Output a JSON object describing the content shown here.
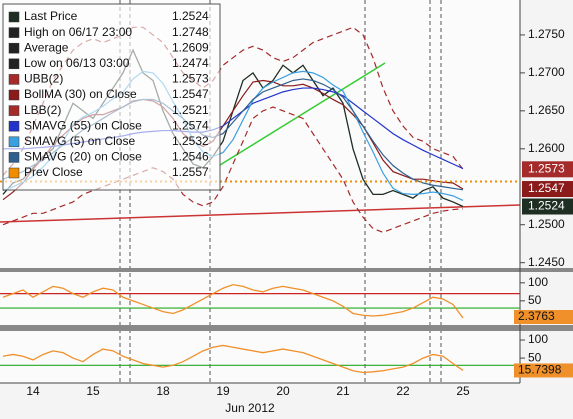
{
  "chart_data": {
    "type": "line",
    "date_label": "Jun 2012",
    "categories": [
      null,
      null,
      null,
      "14",
      null,
      null,
      null,
      null,
      null,
      "15",
      null,
      null,
      null,
      null,
      null,
      null,
      "18",
      null,
      null,
      null,
      null,
      null,
      "19",
      null,
      null,
      null,
      null,
      null,
      "20",
      null,
      null,
      null,
      null,
      null,
      "21",
      null,
      null,
      null,
      null,
      null,
      "22",
      null,
      null,
      null,
      null,
      null,
      "25"
    ],
    "ylim": [
      1.2443,
      1.2796
    ],
    "yticks": [
      {
        "value": 1.245,
        "label": "1.2450"
      },
      {
        "value": 1.25,
        "label": "1.2500"
      },
      {
        "value": 1.26,
        "label": "1.2600"
      },
      {
        "value": 1.265,
        "label": "1.2650"
      },
      {
        "value": 1.27,
        "label": "1.2700"
      },
      {
        "value": 1.275,
        "label": "1.2750"
      }
    ],
    "series": [
      {
        "name": "Last Price",
        "color": "#1e2e22",
        "value": 1.2524,
        "tag": true,
        "values": [
          1.254,
          1.2555,
          1.256,
          1.2575,
          1.259,
          1.26,
          1.263,
          1.266,
          1.265,
          1.264,
          1.266,
          1.268,
          1.27,
          1.273,
          1.27,
          1.269,
          1.265,
          1.262,
          1.26,
          1.258,
          1.2575,
          1.259,
          1.261,
          1.265,
          1.269,
          1.27,
          1.268,
          1.269,
          1.271,
          1.27,
          1.271,
          1.269,
          1.267,
          1.268,
          1.266,
          1.26,
          1.256,
          1.254,
          1.254,
          1.2545,
          1.254,
          1.2535,
          1.2545,
          1.255,
          1.2535,
          1.253,
          1.2524
        ]
      },
      {
        "name": "High on 06/17 23:00",
        "color": "#222222",
        "value": 1.2748
      },
      {
        "name": "Average",
        "color": "#222222",
        "value": 1.2609
      },
      {
        "name": "Low on 06/13 03:00",
        "color": "#222222",
        "value": 1.2474
      },
      {
        "name": "UBB(2)",
        "color": "#a52a2a",
        "value": 1.2573,
        "dash": true,
        "tag": true,
        "values": [
          1.2565,
          1.258,
          1.26,
          1.263,
          1.266,
          1.269,
          1.271,
          1.273,
          1.274,
          1.2745,
          1.274,
          1.2745,
          1.275,
          1.276,
          1.276,
          1.275,
          1.274,
          1.272,
          1.27,
          1.269,
          1.268,
          1.269,
          1.271,
          1.272,
          1.273,
          1.2735,
          1.273,
          1.272,
          1.2715,
          1.272,
          1.273,
          1.274,
          1.2745,
          1.275,
          1.2755,
          1.276,
          1.275,
          1.272,
          1.268,
          1.265,
          1.263,
          1.2615,
          1.261,
          1.26,
          1.2595,
          1.259,
          1.2573
        ]
      },
      {
        "name": "BollMA (30) on Close",
        "color": "#8b1a1a",
        "value": 1.2547,
        "tag": true,
        "values": [
          1.2533,
          1.2543,
          1.2555,
          1.2573,
          1.2588,
          1.2605,
          1.2618,
          1.263,
          1.264,
          1.2645,
          1.2645,
          1.265,
          1.2655,
          1.2663,
          1.2665,
          1.2663,
          1.2655,
          1.264,
          1.262,
          1.261,
          1.2603,
          1.261,
          1.263,
          1.265,
          1.267,
          1.2688,
          1.269,
          1.2688,
          1.2683,
          1.2683,
          1.2685,
          1.268,
          1.2673,
          1.2665,
          1.2658,
          1.2645,
          1.263,
          1.2608,
          1.2585,
          1.257,
          1.2565,
          1.256,
          1.256,
          1.2558,
          1.2556,
          1.2555,
          1.2547
        ]
      },
      {
        "name": "LBB(2)",
        "color": "#a52a2a",
        "value": 1.2521,
        "dash": true,
        "values": [
          1.25,
          1.2505,
          1.251,
          1.2515,
          1.2515,
          1.252,
          1.2525,
          1.253,
          1.254,
          1.2545,
          1.255,
          1.2555,
          1.256,
          1.2565,
          1.257,
          1.2575,
          1.257,
          1.256,
          1.254,
          1.253,
          1.2525,
          1.253,
          1.255,
          1.258,
          1.261,
          1.264,
          1.265,
          1.2655,
          1.265,
          1.2645,
          1.264,
          1.262,
          1.26,
          1.258,
          1.256,
          1.253,
          1.251,
          1.2495,
          1.249,
          1.2495,
          1.25,
          1.2505,
          1.251,
          1.2515,
          1.2518,
          1.252,
          1.2521
        ]
      },
      {
        "name": "SMAVG (55) on Close",
        "color": "#2233cc",
        "value": 1.2574,
        "values": [
          1.26,
          1.26,
          1.26,
          1.2601,
          1.2602,
          1.2603,
          1.2605,
          1.2607,
          1.2609,
          1.2611,
          1.2613,
          1.2615,
          1.2617,
          1.262,
          1.2622,
          1.2623,
          1.2624,
          1.2624,
          1.2623,
          1.2622,
          1.2622,
          1.2625,
          1.263,
          1.264,
          1.265,
          1.266,
          1.2665,
          1.267,
          1.2675,
          1.2678,
          1.268,
          1.268,
          1.2678,
          1.2675,
          1.267,
          1.266,
          1.265,
          1.264,
          1.263,
          1.262,
          1.2612,
          1.2605,
          1.2598,
          1.2592,
          1.2586,
          1.258,
          1.2574
        ]
      },
      {
        "name": "SMAVG (5) on Close",
        "color": "#3aa0e0",
        "value": 1.2532,
        "values": [
          1.2545,
          1.255,
          1.2556,
          1.2564,
          1.2576,
          1.259,
          1.261,
          1.2632,
          1.2642,
          1.2648,
          1.2656,
          1.2666,
          1.2674,
          1.2692,
          1.2702,
          1.27,
          1.2686,
          1.2662,
          1.264,
          1.2612,
          1.2596,
          1.259,
          1.2595,
          1.2612,
          1.2638,
          1.2664,
          1.268,
          1.2688,
          1.2694,
          1.27,
          1.2702,
          1.27,
          1.2694,
          1.2684,
          1.2676,
          1.265,
          1.2622,
          1.2596,
          1.2568,
          1.2548,
          1.2541,
          1.254,
          1.2541,
          1.2543,
          1.2541,
          1.2538,
          1.2532
        ]
      },
      {
        "name": "SMAVG (20) on Close",
        "color": "#2f5f8f",
        "value": 1.2546,
        "values": [
          1.256,
          1.2565,
          1.257,
          1.2578,
          1.2585,
          1.2595,
          1.2605,
          1.2615,
          1.2625,
          1.2632,
          1.264,
          1.2648,
          1.2655,
          1.2662,
          1.2665,
          1.2665,
          1.266,
          1.265,
          1.264,
          1.2628,
          1.2618,
          1.2615,
          1.262,
          1.2635,
          1.265,
          1.2665,
          1.2675,
          1.268,
          1.2685,
          1.269,
          1.2692,
          1.269,
          1.2685,
          1.2678,
          1.2668,
          1.265,
          1.263,
          1.261,
          1.2592,
          1.2578,
          1.2568,
          1.256,
          1.2555,
          1.2552,
          1.255,
          1.2548,
          1.2546
        ]
      },
      {
        "name": "Prev Close",
        "color": "#f08c00",
        "value": 1.2557,
        "hline": true
      }
    ],
    "oscillators": [
      {
        "color": "#f0902a",
        "ylim": [
          -17,
          130
        ],
        "yticks": [
          50,
          100
        ],
        "levels": [
          {
            "value": 70,
            "color": "#cc2222"
          },
          {
            "value": 30,
            "color": "#22aa22"
          }
        ],
        "values": [
          60,
          70,
          80,
          60,
          75,
          90,
          85,
          70,
          60,
          75,
          85,
          80,
          60,
          50,
          40,
          30,
          20,
          15,
          25,
          40,
          55,
          70,
          85,
          95,
          90,
          80,
          75,
          85,
          90,
          85,
          80,
          70,
          60,
          50,
          35,
          15,
          10,
          8,
          10,
          15,
          20,
          30,
          45,
          60,
          55,
          40,
          2.3763
        ]
      },
      {
        "color": "#f0902a",
        "ylim": [
          -19,
          125
        ],
        "yticks": [
          50,
          100
        ],
        "levels": [
          {
            "value": 30,
            "color": "#22aa22"
          }
        ],
        "values": [
          55,
          60,
          55,
          45,
          60,
          70,
          65,
          50,
          40,
          60,
          75,
          70,
          55,
          45,
          35,
          30,
          25,
          30,
          40,
          55,
          70,
          80,
          85,
          80,
          75,
          70,
          65,
          70,
          75,
          70,
          65,
          55,
          45,
          35,
          25,
          15,
          10,
          12,
          15,
          20,
          25,
          35,
          50,
          60,
          55,
          35,
          15.7398
        ]
      }
    ]
  }
}
